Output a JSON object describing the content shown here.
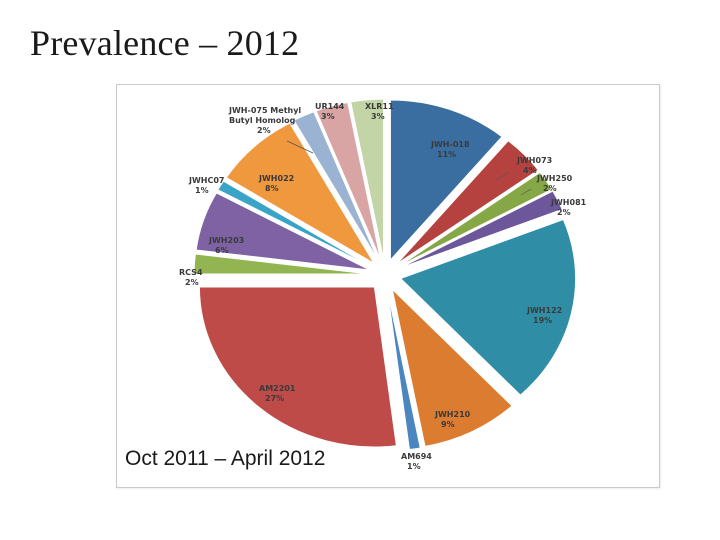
{
  "slide": {
    "title": "Prevalence – 2012"
  },
  "chart_data": {
    "type": "pie",
    "subtitle": "Oct 2011 – April 2012",
    "slices": [
      {
        "label": "JWH-018",
        "value": 11,
        "value_label": "11%",
        "color": "#3a6ea0"
      },
      {
        "label": "JWH073",
        "value": 4,
        "value_label": "4%",
        "color": "#b6423f"
      },
      {
        "label": "JWH250",
        "value": 2,
        "value_label": "2%",
        "color": "#86a746"
      },
      {
        "label": "JWH081",
        "value": 2,
        "value_label": "2%",
        "color": "#6c579a"
      },
      {
        "label": "JWH122",
        "value": 19,
        "value_label": "19%",
        "color": "#2f8ea6"
      },
      {
        "label": "JWH210",
        "value": 9,
        "value_label": "9%",
        "color": "#dc7c30"
      },
      {
        "label": "AM694",
        "value": 1,
        "value_label": "1%",
        "color": "#4b86c0"
      },
      {
        "label": "AM2201",
        "value": 27,
        "value_label": "27%",
        "color": "#be4b48"
      },
      {
        "label": "RCS4",
        "value": 2,
        "value_label": "2%",
        "color": "#92b552"
      },
      {
        "label": "JWH203",
        "value": 6,
        "value_label": "6%",
        "color": "#7e62a4"
      },
      {
        "label": "JWHC07",
        "value": 1,
        "value_label": "1%",
        "color": "#3aa4c8"
      },
      {
        "label": "JWH022",
        "value": 8,
        "value_label": "8%",
        "color": "#f0983e"
      },
      {
        "label": "JWH-075 Methyl Butyl Homolog",
        "value": 2,
        "value_label": "2%",
        "color": "#9bb3d3"
      },
      {
        "label": "UR144",
        "value": 3,
        "value_label": "3%",
        "color": "#d9a5a4"
      },
      {
        "label": "XLR11",
        "value": 3,
        "value_label": "3%",
        "color": "#c3d4a6"
      }
    ]
  }
}
